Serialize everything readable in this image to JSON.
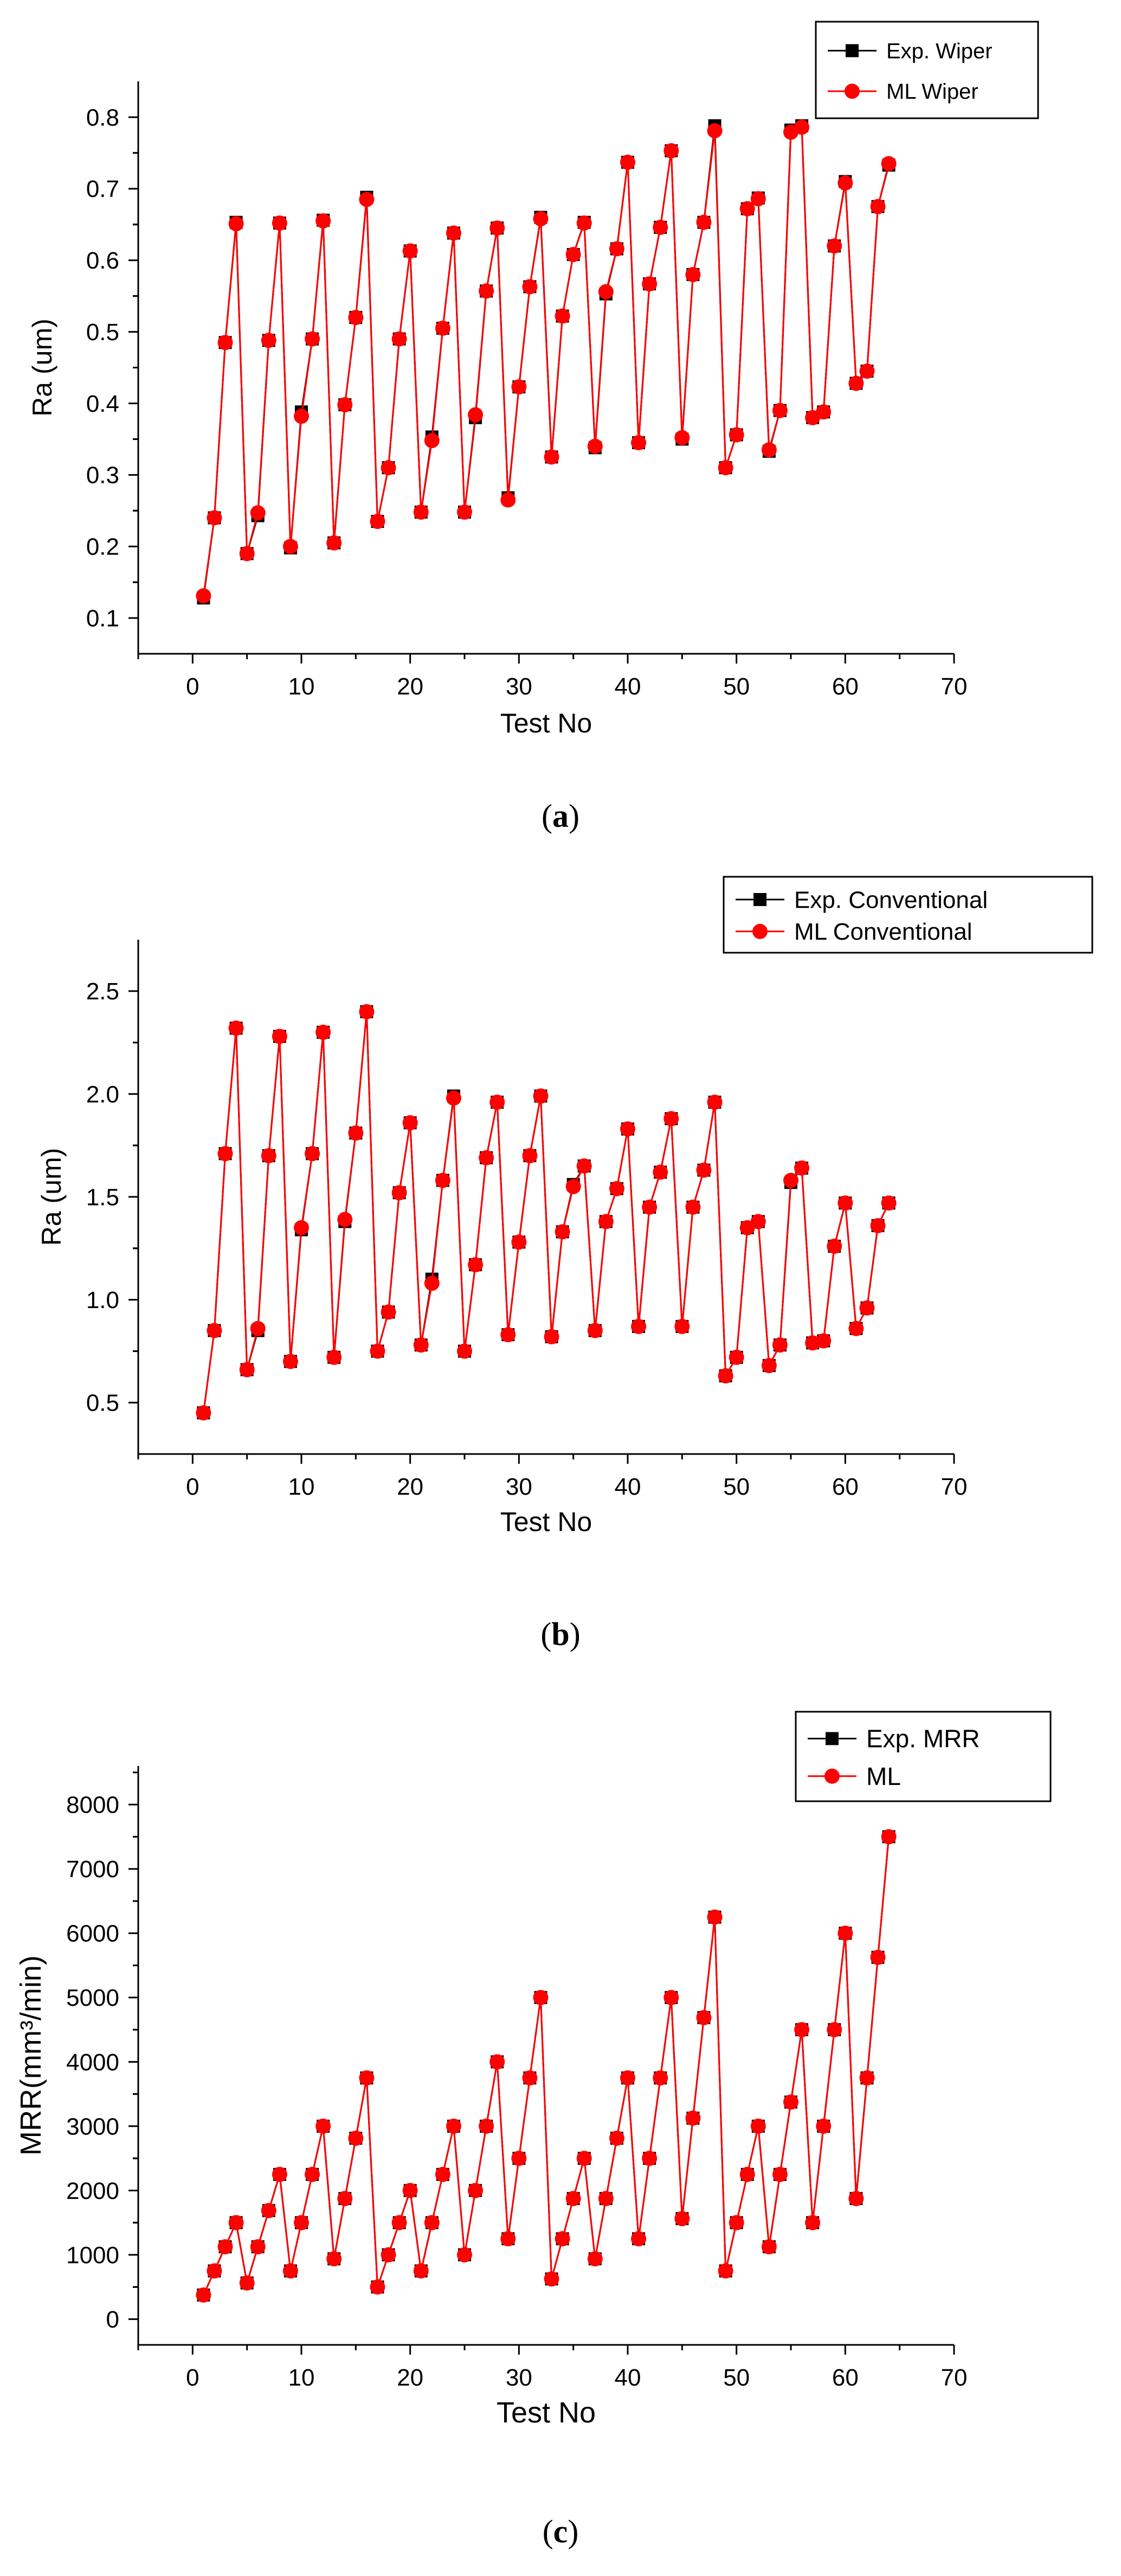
{
  "colors": {
    "exp": "#000000",
    "ml": "#ff0000",
    "axis": "#000000"
  },
  "chart_data": [
    {
      "type": "line",
      "panel_label": "a",
      "xlabel": "Test No",
      "ylabel": "Ra (um)",
      "xlim": [
        -5,
        70
      ],
      "ylim": [
        0.05,
        0.85
      ],
      "xticks": [
        0,
        10,
        20,
        30,
        40,
        50,
        60,
        70
      ],
      "yticks": [
        0.1,
        0.2,
        0.3,
        0.4,
        0.5,
        0.6,
        0.7,
        0.8
      ],
      "x": [
        1,
        2,
        3,
        4,
        5,
        6,
        7,
        8,
        9,
        10,
        11,
        12,
        13,
        14,
        15,
        16,
        17,
        18,
        19,
        20,
        21,
        22,
        23,
        24,
        25,
        26,
        27,
        28,
        29,
        30,
        31,
        32,
        33,
        34,
        35,
        36,
        37,
        38,
        39,
        40,
        41,
        42,
        43,
        44,
        45,
        46,
        47,
        48,
        49,
        50,
        51,
        52,
        53,
        54,
        55,
        56,
        57,
        58,
        59,
        60,
        61,
        62,
        63,
        64
      ],
      "series": [
        {
          "name": "Exp. Wiper",
          "marker": "square",
          "values": [
            0.128,
            0.24,
            0.485,
            0.653,
            0.19,
            0.243,
            0.488,
            0.652,
            0.198,
            0.388,
            0.49,
            0.656,
            0.205,
            0.398,
            0.52,
            0.688,
            0.235,
            0.31,
            0.49,
            0.613,
            0.248,
            0.353,
            0.505,
            0.638,
            0.248,
            0.38,
            0.557,
            0.645,
            0.268,
            0.423,
            0.563,
            0.66,
            0.325,
            0.522,
            0.608,
            0.653,
            0.338,
            0.553,
            0.616,
            0.737,
            0.345,
            0.567,
            0.646,
            0.753,
            0.35,
            0.58,
            0.653,
            0.788,
            0.31,
            0.356,
            0.672,
            0.687,
            0.333,
            0.39,
            0.782,
            0.788,
            0.38,
            0.388,
            0.62,
            0.71,
            0.428,
            0.445,
            0.675,
            0.733
          ]
        },
        {
          "name": "ML Wiper",
          "marker": "circle",
          "values": [
            0.131,
            0.24,
            0.485,
            0.651,
            0.19,
            0.247,
            0.488,
            0.652,
            0.2,
            0.382,
            0.49,
            0.655,
            0.205,
            0.398,
            0.52,
            0.685,
            0.235,
            0.31,
            0.49,
            0.613,
            0.248,
            0.348,
            0.505,
            0.638,
            0.248,
            0.384,
            0.557,
            0.645,
            0.265,
            0.423,
            0.563,
            0.658,
            0.325,
            0.522,
            0.608,
            0.652,
            0.34,
            0.556,
            0.616,
            0.737,
            0.345,
            0.567,
            0.646,
            0.753,
            0.352,
            0.58,
            0.653,
            0.781,
            0.31,
            0.356,
            0.672,
            0.686,
            0.335,
            0.39,
            0.779,
            0.786,
            0.38,
            0.388,
            0.62,
            0.708,
            0.428,
            0.445,
            0.675,
            0.735
          ]
        }
      ]
    },
    {
      "type": "line",
      "panel_label": "b",
      "xlabel": "Test No",
      "ylabel": "Ra (um)",
      "xlim": [
        -5,
        70
      ],
      "ylim": [
        0.25,
        2.75
      ],
      "xticks": [
        0,
        10,
        20,
        30,
        40,
        50,
        60,
        70
      ],
      "yticks": [
        0.5,
        1.0,
        1.5,
        2.0,
        2.5
      ],
      "ytick_labels": [
        "0.5",
        "1.0",
        "1.5",
        "2.0",
        "2.5"
      ],
      "x": [
        1,
        2,
        3,
        4,
        5,
        6,
        7,
        8,
        9,
        10,
        11,
        12,
        13,
        14,
        15,
        16,
        17,
        18,
        19,
        20,
        21,
        22,
        23,
        24,
        25,
        26,
        27,
        28,
        29,
        30,
        31,
        32,
        33,
        34,
        35,
        36,
        37,
        38,
        39,
        40,
        41,
        42,
        43,
        44,
        45,
        46,
        47,
        48,
        49,
        50,
        51,
        52,
        53,
        54,
        55,
        56,
        57,
        58,
        59,
        60,
        61,
        62,
        63,
        64
      ],
      "series": [
        {
          "name": "Exp. Conventional",
          "marker": "square",
          "values": [
            0.45,
            0.85,
            1.71,
            2.32,
            0.66,
            0.85,
            1.7,
            2.28,
            0.7,
            1.34,
            1.71,
            2.3,
            0.72,
            1.38,
            1.81,
            2.4,
            0.75,
            0.94,
            1.52,
            1.86,
            0.78,
            1.1,
            1.58,
            1.99,
            0.75,
            1.17,
            1.69,
            1.96,
            0.83,
            1.28,
            1.7,
            1.99,
            0.82,
            1.33,
            1.56,
            1.65,
            0.85,
            1.38,
            1.54,
            1.83,
            0.87,
            1.45,
            1.62,
            1.88,
            0.87,
            1.45,
            1.63,
            1.96,
            0.63,
            0.72,
            1.35,
            1.38,
            0.68,
            0.78,
            1.57,
            1.64,
            0.79,
            0.8,
            1.26,
            1.47,
            0.86,
            0.96,
            1.36,
            1.47
          ]
        },
        {
          "name": "ML Conventional",
          "marker": "circle",
          "values": [
            0.45,
            0.85,
            1.71,
            2.32,
            0.66,
            0.86,
            1.7,
            2.28,
            0.7,
            1.35,
            1.71,
            2.3,
            0.72,
            1.39,
            1.81,
            2.4,
            0.75,
            0.94,
            1.52,
            1.86,
            0.78,
            1.08,
            1.58,
            1.98,
            0.75,
            1.17,
            1.69,
            1.96,
            0.83,
            1.28,
            1.7,
            1.99,
            0.82,
            1.33,
            1.55,
            1.65,
            0.85,
            1.38,
            1.54,
            1.83,
            0.87,
            1.45,
            1.62,
            1.88,
            0.87,
            1.45,
            1.63,
            1.96,
            0.63,
            0.72,
            1.35,
            1.38,
            0.68,
            0.78,
            1.58,
            1.64,
            0.79,
            0.8,
            1.26,
            1.47,
            0.86,
            0.96,
            1.36,
            1.47
          ]
        }
      ]
    },
    {
      "type": "line",
      "panel_label": "c",
      "xlabel": "Test No",
      "ylabel": "MRR(mm³/min)",
      "xlim": [
        -5,
        70
      ],
      "ylim": [
        -400,
        8600
      ],
      "xticks": [
        0,
        10,
        20,
        30,
        40,
        50,
        60,
        70
      ],
      "yticks": [
        0,
        1000,
        2000,
        3000,
        4000,
        5000,
        6000,
        7000,
        8000
      ],
      "x": [
        1,
        2,
        3,
        4,
        5,
        6,
        7,
        8,
        9,
        10,
        11,
        12,
        13,
        14,
        15,
        16,
        17,
        18,
        19,
        20,
        21,
        22,
        23,
        24,
        25,
        26,
        27,
        28,
        29,
        30,
        31,
        32,
        33,
        34,
        35,
        36,
        37,
        38,
        39,
        40,
        41,
        42,
        43,
        44,
        45,
        46,
        47,
        48,
        49,
        50,
        51,
        52,
        53,
        54,
        55,
        56,
        57,
        58,
        59,
        60,
        61,
        62,
        63,
        64
      ],
      "series": [
        {
          "name": "Exp. MRR",
          "marker": "square",
          "values": [
            375,
            750,
            1125,
            1500,
            563,
            1125,
            1688,
            2250,
            750,
            1500,
            2250,
            3000,
            938,
            1875,
            2813,
            3750,
            500,
            1000,
            1500,
            2000,
            750,
            1500,
            2250,
            3000,
            1000,
            2000,
            3000,
            4000,
            1250,
            2500,
            3750,
            5000,
            625,
            1250,
            1875,
            2500,
            938,
            1875,
            2813,
            3750,
            1250,
            2500,
            3750,
            5000,
            1563,
            3125,
            4688,
            6250,
            750,
            1500,
            2250,
            3000,
            1125,
            2250,
            3375,
            4500,
            1500,
            3000,
            4500,
            6000,
            1875,
            3750,
            5625,
            7500
          ]
        },
        {
          "name": "ML",
          "marker": "circle",
          "values": [
            375,
            750,
            1125,
            1500,
            563,
            1125,
            1688,
            2250,
            750,
            1500,
            2250,
            3000,
            938,
            1875,
            2813,
            3750,
            500,
            1000,
            1500,
            2000,
            750,
            1500,
            2250,
            3000,
            1000,
            2000,
            3000,
            4000,
            1250,
            2500,
            3750,
            5000,
            625,
            1250,
            1875,
            2500,
            938,
            1875,
            2813,
            3750,
            1250,
            2500,
            3750,
            5000,
            1563,
            3125,
            4688,
            6250,
            750,
            1500,
            2250,
            3000,
            1125,
            2250,
            3375,
            4500,
            1500,
            3000,
            4500,
            6000,
            1875,
            3750,
            5625,
            7500
          ]
        }
      ]
    }
  ]
}
